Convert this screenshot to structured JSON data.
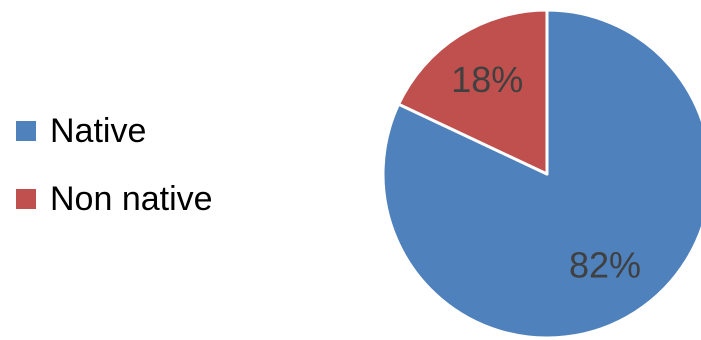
{
  "chart_data": {
    "type": "pie",
    "categories": [
      "Native",
      "Non native"
    ],
    "values": [
      82,
      18
    ],
    "labels": [
      "82%",
      "18%"
    ],
    "colors": [
      "#4F81BD",
      "#C0504D"
    ],
    "title": "",
    "legend_position": "left",
    "start_angle": "top, clockwise"
  }
}
